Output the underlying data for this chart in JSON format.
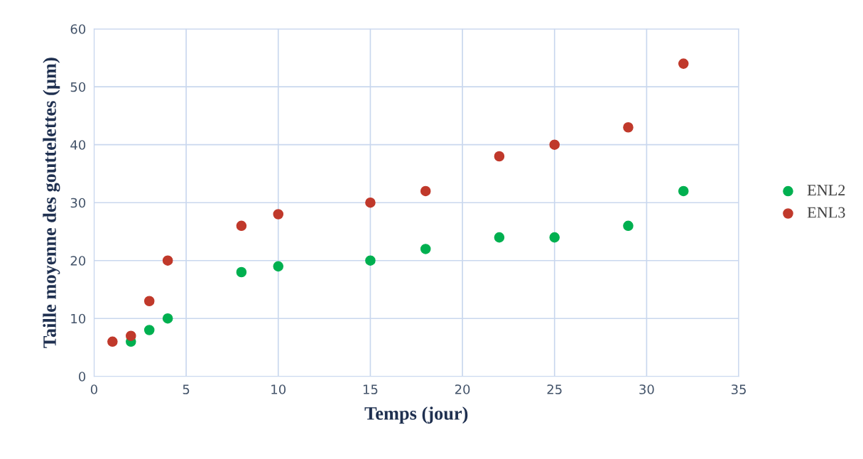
{
  "chart_data": {
    "type": "scatter",
    "xlabel": "Temps (jour)",
    "ylabel": "Taille moyenne des gouttelettes (µm)",
    "x": [
      1,
      2,
      3,
      4,
      8,
      10,
      15,
      18,
      22,
      25,
      29,
      32
    ],
    "series": [
      {
        "name": "ENL2",
        "color": "#00b050",
        "values": [
          null,
          6,
          8,
          10,
          18,
          19,
          20,
          22,
          24,
          24,
          26,
          32
        ]
      },
      {
        "name": "ENL3",
        "color": "#c0392b",
        "values": [
          6,
          7,
          13,
          20,
          26,
          28,
          30,
          32,
          38,
          40,
          43,
          54
        ]
      }
    ],
    "xlim": [
      0,
      35
    ],
    "xticks": [
      0,
      5,
      10,
      15,
      20,
      25,
      30,
      35
    ],
    "ylim": [
      0,
      60
    ],
    "yticks": [
      0,
      10,
      20,
      30,
      40,
      50,
      60
    ],
    "grid": true,
    "legend": "right",
    "marker": "circle"
  }
}
